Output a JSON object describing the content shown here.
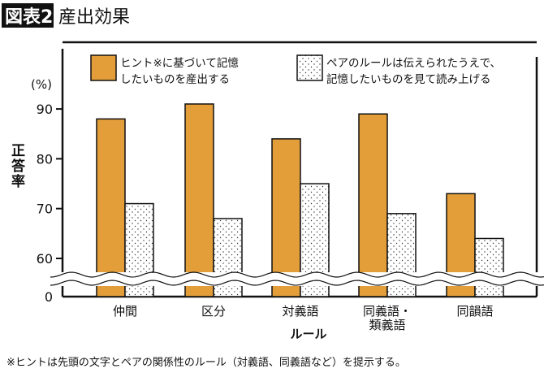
{
  "header": {
    "badge": "図表2",
    "title": "産出効果"
  },
  "footnote": "※ヒントは先頭の文字とペアの関係性のルール（対義語、同義語など）を提示する。",
  "chart_data": {
    "type": "bar",
    "title": "産出効果",
    "ylabel": "正答率",
    "yunit": "(%)",
    "xlabel": "ルール",
    "categories": [
      [
        "仲間"
      ],
      [
        "区分"
      ],
      [
        "対義語"
      ],
      [
        "同義語・",
        "類義語"
      ],
      [
        "同韻語"
      ]
    ],
    "ylim": [
      60,
      95
    ],
    "yticks": [
      60,
      70,
      80,
      90
    ],
    "ytick_zero": "0",
    "axis_break": true,
    "grid": false,
    "legend_position": "top",
    "series": [
      {
        "name": "ヒント※に基づいて記憶したいものを産出する",
        "legend_lines": [
          "ヒント※に基づいて記憶",
          "したいものを産出する"
        ],
        "color": "#E39E3A",
        "pattern": "solid",
        "values": [
          88,
          91,
          84,
          89,
          73
        ]
      },
      {
        "name": "ペアのルールは伝えられたうえで、記憶したいものを見て読み上げる",
        "legend_lines": [
          "ペアのルールは伝えられたうえで、",
          "記憶したいものを見て読み上げる"
        ],
        "color": "#ffffff",
        "pattern": "dots",
        "values": [
          71,
          68,
          75,
          69,
          64
        ]
      }
    ]
  }
}
